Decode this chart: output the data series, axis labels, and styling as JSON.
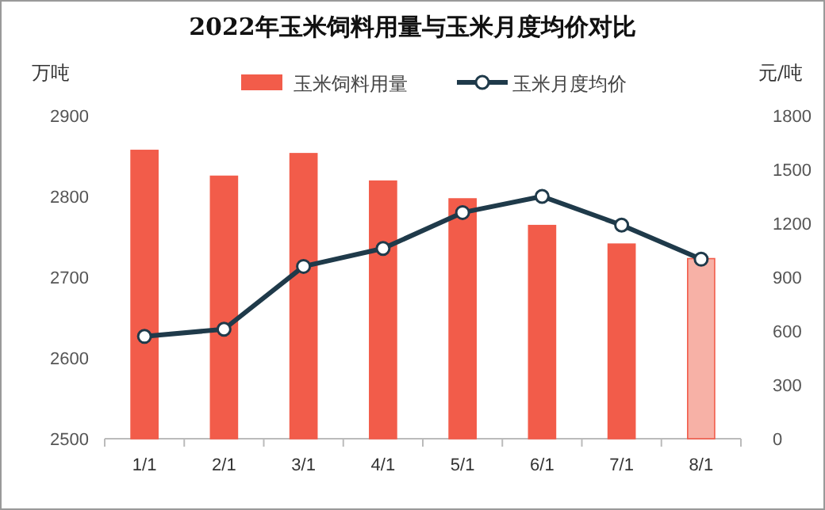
{
  "chart_data": {
    "type": "bar",
    "title": "2022年玉米饲料用量与玉米月度均价对比",
    "ylabel": "万吨",
    "y2label": "元/吨",
    "categories": [
      "1/1",
      "2/1",
      "3/1",
      "4/1",
      "5/1",
      "6/1",
      "7/1",
      "8/1"
    ],
    "series": [
      {
        "name": "玉米饲料用量",
        "color": "#f25c4a",
        "colors": [
          "#f25c4a",
          "#f25c4a",
          "#f25c4a",
          "#f25c4a",
          "#f25c4a",
          "#f25c4a",
          "#f25c4a",
          "#f7b1a6"
        ],
        "values": [
          2857,
          2825,
          2853,
          2819,
          2797,
          2764,
          2741,
          2723
        ]
      },
      {
        "name": "玉米月度均价",
        "type": "line",
        "axis": "y2",
        "color": "#1f3a4a",
        "values": [
          570,
          610,
          960,
          1060,
          1260,
          1350,
          1190,
          1000
        ]
      }
    ],
    "ylim": [
      2500,
      2900
    ],
    "yticks": [
      2500,
      2600,
      2700,
      2800,
      2900
    ],
    "y2lim": [
      0,
      1800
    ],
    "y2ticks": [
      0,
      300,
      600,
      900,
      1200,
      1500,
      1800
    ],
    "marker": "circle",
    "legend": "top",
    "grid": false
  }
}
